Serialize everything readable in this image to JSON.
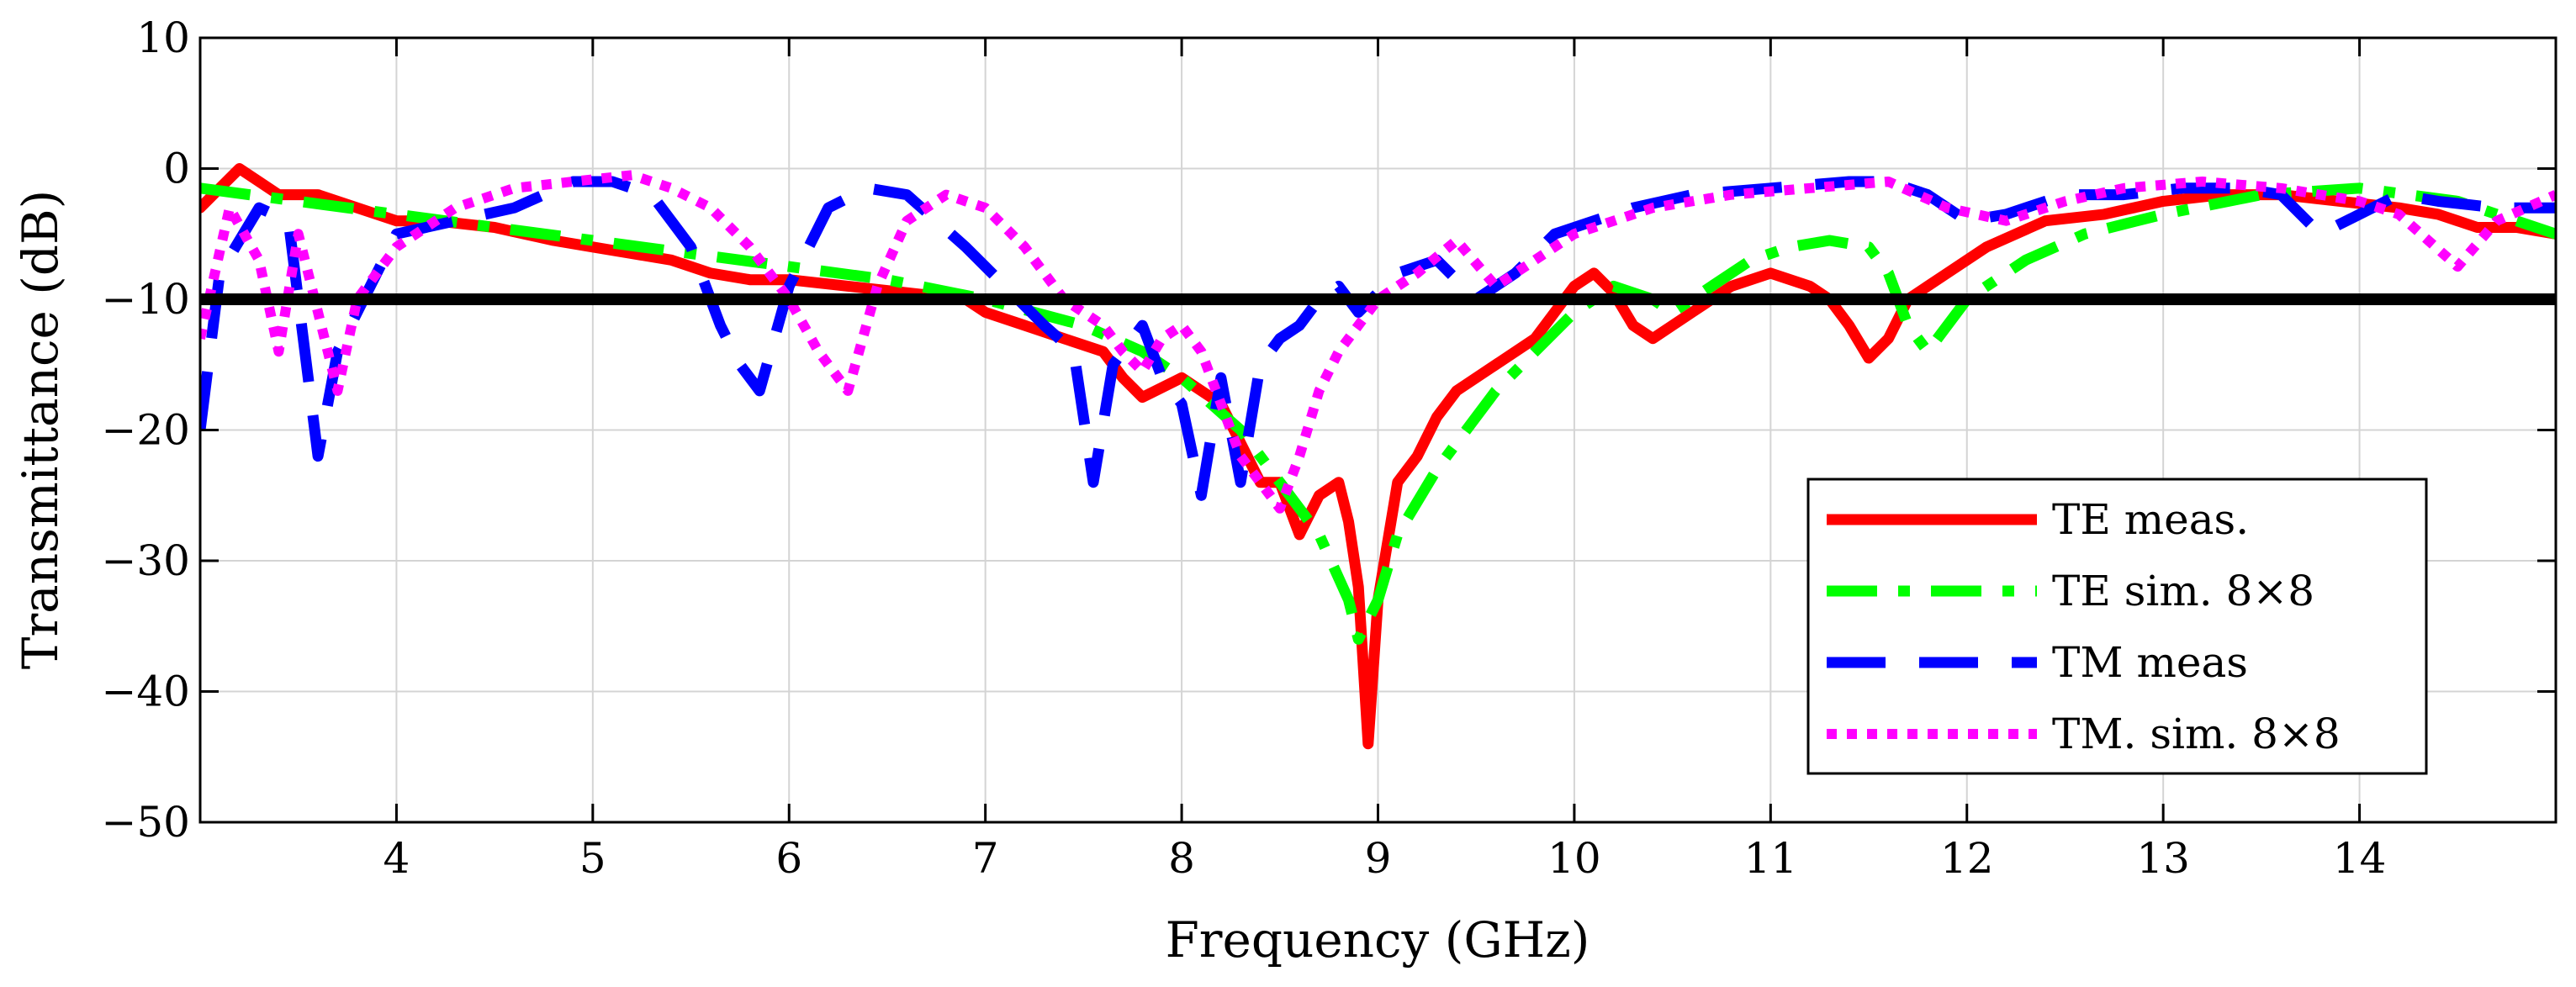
{
  "chart_data": {
    "type": "line",
    "title": "",
    "xlabel": "Frequency (GHz)",
    "ylabel": "Transmittance (dB)",
    "xlim": [
      3.0,
      15.0
    ],
    "ylim": [
      -50,
      10
    ],
    "xticks": [
      4,
      5,
      6,
      7,
      8,
      9,
      10,
      11,
      12,
      13,
      14
    ],
    "yticks": [
      10,
      0,
      -10,
      -20,
      -30,
      -40,
      -50
    ],
    "ytick_labels": [
      "10",
      "0",
      "−10",
      "−20",
      "−30",
      "−40",
      "−50"
    ],
    "grid": true,
    "legend_position": "bottom-right",
    "reference_line": {
      "y": -10,
      "color": "#000000"
    },
    "series": [
      {
        "name": "TE meas.",
        "color": "#ff0000",
        "style": "solid",
        "x": [
          3.0,
          3.1,
          3.2,
          3.3,
          3.4,
          3.6,
          3.8,
          4.0,
          4.2,
          4.5,
          4.8,
          5.0,
          5.2,
          5.4,
          5.6,
          5.8,
          6.0,
          6.3,
          6.6,
          6.9,
          7.0,
          7.2,
          7.4,
          7.6,
          7.7,
          7.8,
          8.0,
          8.2,
          8.4,
          8.5,
          8.6,
          8.7,
          8.8,
          8.85,
          8.9,
          8.95,
          9.0,
          9.1,
          9.2,
          9.3,
          9.4,
          9.6,
          9.8,
          10.0,
          10.1,
          10.2,
          10.3,
          10.4,
          10.5,
          10.6,
          10.8,
          11.0,
          11.2,
          11.3,
          11.4,
          11.5,
          11.6,
          11.7,
          11.9,
          12.1,
          12.4,
          12.7,
          13.0,
          13.3,
          13.6,
          13.9,
          14.2,
          14.4,
          14.6,
          14.8,
          15.0
        ],
        "values": [
          -3,
          -1.5,
          0,
          -1,
          -2,
          -2,
          -3,
          -4,
          -4,
          -4.5,
          -5.5,
          -6,
          -6.5,
          -7,
          -8,
          -8.5,
          -8.5,
          -9,
          -9.5,
          -10,
          -11,
          -12,
          -13,
          -14,
          -16,
          -17.5,
          -16,
          -18,
          -24,
          -24,
          -28,
          -25,
          -24,
          -27,
          -32,
          -44,
          -33,
          -24,
          -22,
          -19,
          -17,
          -15,
          -13,
          -9,
          -8,
          -9.5,
          -12,
          -13,
          -12,
          -11,
          -9,
          -8,
          -9,
          -10,
          -12,
          -14.5,
          -13,
          -10,
          -8,
          -6,
          -4,
          -3.5,
          -2.5,
          -2,
          -2,
          -2.5,
          -3,
          -3.5,
          -4.5,
          -4.5,
          -5
        ]
      },
      {
        "name": "TE sim. 8×8",
        "color": "#00ff00",
        "style": "dashdot",
        "x": [
          3.0,
          3.5,
          4.0,
          4.5,
          5.0,
          5.5,
          6.0,
          6.5,
          7.0,
          7.5,
          7.8,
          8.0,
          8.3,
          8.5,
          8.7,
          8.85,
          8.9,
          9.0,
          9.1,
          9.3,
          9.6,
          10.0,
          10.2,
          10.4,
          10.5,
          10.7,
          10.9,
          11.1,
          11.3,
          11.5,
          11.6,
          11.7,
          11.8,
          12.0,
          12.3,
          12.6,
          13.0,
          13.5,
          14.0,
          14.5,
          14.8,
          15.0
        ],
        "values": [
          -1.5,
          -2.5,
          -3.5,
          -4.5,
          -5.5,
          -6.5,
          -7.5,
          -8.5,
          -10,
          -12,
          -14,
          -16,
          -20,
          -24,
          -28,
          -33,
          -36,
          -33,
          -28,
          -23,
          -17,
          -11,
          -9,
          -10,
          -11,
          -9,
          -7,
          -6,
          -5.5,
          -6,
          -8,
          -12,
          -14,
          -10,
          -7,
          -5,
          -3.5,
          -2,
          -1.5,
          -2.5,
          -4,
          -5
        ]
      },
      {
        "name": "TM meas",
        "color": "#0000ff",
        "style": "dashed",
        "x": [
          3.0,
          3.1,
          3.3,
          3.45,
          3.6,
          3.7,
          3.8,
          4.0,
          4.3,
          4.6,
          4.9,
          5.1,
          5.3,
          5.5,
          5.65,
          5.75,
          5.85,
          6.0,
          6.2,
          6.4,
          6.6,
          6.9,
          7.1,
          7.3,
          7.45,
          7.55,
          7.65,
          7.8,
          7.9,
          8.0,
          8.1,
          8.2,
          8.3,
          8.4,
          8.5,
          8.6,
          8.7,
          8.8,
          8.9,
          9.1,
          9.3,
          9.5,
          9.7,
          9.9,
          10.1,
          10.3,
          10.6,
          11.0,
          11.4,
          11.6,
          11.8,
          12.0,
          12.2,
          12.5,
          12.8,
          13.1,
          13.4,
          13.6,
          13.8,
          14.0,
          14.2,
          14.4,
          14.7,
          15.0
        ],
        "values": [
          -20,
          -8,
          -3,
          -4,
          -22,
          -14,
          -11,
          -5,
          -4,
          -3,
          -1,
          -1,
          -2,
          -6,
          -12,
          -15,
          -17,
          -9,
          -3,
          -1.5,
          -2,
          -6,
          -9,
          -12,
          -14,
          -24,
          -15,
          -12,
          -16,
          -18,
          -25,
          -16,
          -24,
          -15,
          -13,
          -12,
          -10,
          -9,
          -11,
          -8,
          -7,
          -10,
          -8,
          -5,
          -4,
          -3,
          -2,
          -1.5,
          -1,
          -1,
          -2,
          -4,
          -3.5,
          -2,
          -2,
          -1.5,
          -1.5,
          -2,
          -5,
          -3.5,
          -2,
          -2.5,
          -3,
          -3
        ]
      },
      {
        "name": "TM. sim. 8×8",
        "color": "#ff00ff",
        "style": "dotted",
        "x": [
          3.0,
          3.15,
          3.3,
          3.4,
          3.5,
          3.6,
          3.7,
          3.8,
          4.0,
          4.3,
          4.6,
          4.9,
          5.2,
          5.4,
          5.6,
          5.8,
          6.0,
          6.15,
          6.3,
          6.45,
          6.6,
          6.8,
          7.0,
          7.2,
          7.4,
          7.6,
          7.7,
          7.8,
          7.9,
          8.0,
          8.1,
          8.2,
          8.3,
          8.4,
          8.5,
          8.6,
          8.7,
          8.8,
          9.0,
          9.2,
          9.4,
          9.6,
          9.8,
          10.0,
          10.4,
          10.8,
          11.2,
          11.6,
          11.9,
          12.2,
          12.5,
          12.8,
          13.2,
          13.6,
          14.0,
          14.2,
          14.35,
          14.5,
          14.7,
          15.0
        ],
        "values": [
          -13,
          -3,
          -7,
          -14,
          -5,
          -11,
          -17,
          -10,
          -6,
          -3,
          -1.5,
          -1,
          -0.5,
          -1.5,
          -3,
          -6,
          -10,
          -14,
          -17,
          -9,
          -4,
          -2,
          -3,
          -6,
          -10,
          -12,
          -14,
          -15.5,
          -13,
          -12,
          -14,
          -18,
          -22,
          -24,
          -26,
          -22,
          -17,
          -14,
          -10,
          -8,
          -5.5,
          -9,
          -7,
          -5,
          -3,
          -2,
          -1.5,
          -1,
          -3,
          -4,
          -2.5,
          -1.5,
          -1,
          -1.5,
          -2.5,
          -3.5,
          -5.5,
          -7.5,
          -4,
          -2
        ]
      }
    ]
  }
}
